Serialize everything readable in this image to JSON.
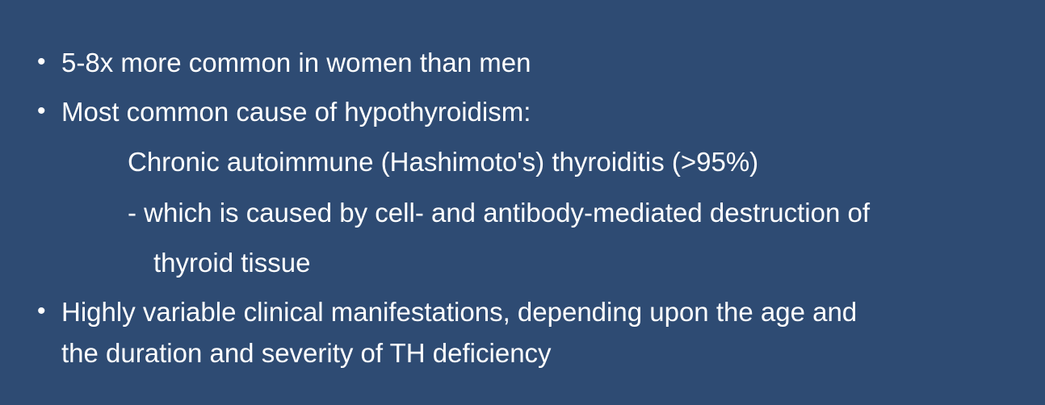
{
  "slide": {
    "bullet_glyph": "•",
    "items": [
      {
        "text": "5-8x more common in women than men"
      },
      {
        "text": "Most common cause of hypothyroidism:"
      },
      {
        "text": "Chronic autoimmune (Hashimoto's) thyroiditis (>95%)"
      },
      {
        "text": "- which is caused by cell- and antibody-mediated destruction of"
      },
      {
        "text": "thyroid tissue"
      },
      {
        "text": "Highly variable clinical manifestations, depending upon the age and"
      },
      {
        "text": "the duration and severity of TH deficiency"
      }
    ]
  },
  "colors": {
    "background": "#2e4b73",
    "text": "#ffffff"
  }
}
